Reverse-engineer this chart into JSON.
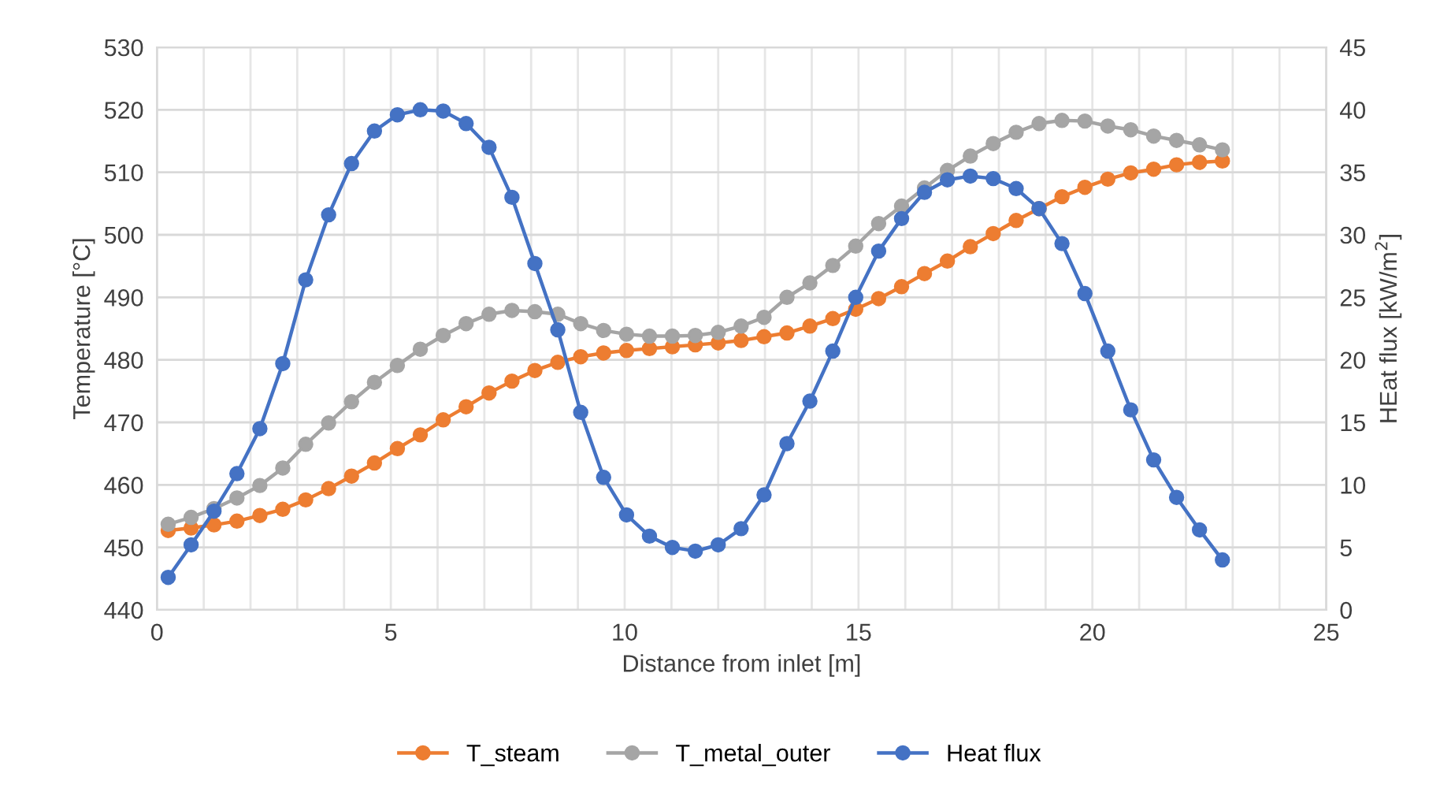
{
  "chart_data": {
    "type": "line",
    "xlabel": "Distance from inlet [m]",
    "ylabel": "Temperature [°C]",
    "y2label": "HEat flux [kW/m$^{2}$]",
    "x": [
      0.24,
      0.73,
      1.22,
      1.71,
      2.2,
      2.69,
      3.18,
      3.67,
      4.16,
      4.65,
      5.14,
      5.63,
      6.12,
      6.61,
      7.1,
      7.59,
      8.08,
      8.57,
      9.06,
      9.55,
      10.04,
      10.53,
      11.02,
      11.51,
      12.0,
      12.49,
      12.98,
      13.47,
      13.96,
      14.45,
      14.94,
      15.43,
      15.92,
      16.41,
      16.9,
      17.39,
      17.88,
      18.37,
      18.86,
      19.35,
      19.84,
      20.33,
      20.82,
      21.31,
      21.8,
      22.29,
      22.78
    ],
    "xlim": [
      0,
      25
    ],
    "xticks": [
      0,
      {
        "value": 1,
        "label": null
      },
      {
        "value": 2,
        "label": null
      },
      {
        "value": 3,
        "label": null
      },
      {
        "value": 4,
        "label": null
      },
      5,
      {
        "value": 6,
        "label": null
      },
      {
        "value": 7,
        "label": null
      },
      {
        "value": 8,
        "label": null
      },
      {
        "value": 9,
        "label": null
      },
      10,
      {
        "value": 11,
        "label": null
      },
      {
        "value": 12,
        "label": null
      },
      {
        "value": 13,
        "label": null
      },
      {
        "value": 14,
        "label": null
      },
      15,
      {
        "value": 16,
        "label": null
      },
      {
        "value": 17,
        "label": null
      },
      {
        "value": 18,
        "label": null
      },
      {
        "value": 19,
        "label": null
      },
      20,
      {
        "value": 21,
        "label": null
      },
      {
        "value": 22,
        "label": null
      },
      {
        "value": 23,
        "label": null
      },
      {
        "value": 24,
        "label": null
      },
      25
    ],
    "ylim": [
      440,
      530
    ],
    "yticks": [
      440,
      450,
      460,
      470,
      480,
      490,
      500,
      510,
      520,
      530
    ],
    "y2lim": [
      0,
      45
    ],
    "y2ticks": [
      0,
      5,
      10,
      15,
      20,
      25,
      30,
      35,
      40,
      45
    ],
    "grid": true,
    "legend": "bottom",
    "marker": "circle",
    "line_style": "solid",
    "series": [
      {
        "name": "T_steam",
        "color": "#ed7d31",
        "values": [
          452.7,
          453.1,
          453.6,
          454.2,
          455.1,
          456.1,
          457.6,
          459.4,
          461.4,
          463.5,
          465.8,
          468.0,
          470.4,
          472.5,
          474.7,
          476.6,
          478.3,
          479.6,
          480.5,
          481.1,
          481.5,
          481.8,
          482.1,
          482.4,
          482.7,
          483.1,
          483.7,
          484.3,
          485.4,
          486.6,
          488.1,
          489.8,
          491.7,
          493.8,
          495.8,
          498.1,
          500.2,
          502.3,
          504.2,
          506.1,
          507.6,
          508.9,
          509.9,
          510.5,
          511.2,
          511.6,
          511.8
        ]
      },
      {
        "name": "T_metal_outer",
        "color": "#a5a5a5",
        "values": [
          453.7,
          454.8,
          456.2,
          457.9,
          459.9,
          462.7,
          466.5,
          469.9,
          473.3,
          476.4,
          479.1,
          481.7,
          483.9,
          485.8,
          487.3,
          487.9,
          487.7,
          487.3,
          485.8,
          484.7,
          484.1,
          483.8,
          483.8,
          483.9,
          484.4,
          485.4,
          486.8,
          490.0,
          492.3,
          495.1,
          498.2,
          501.8,
          504.6,
          507.5,
          510.3,
          512.6,
          514.6,
          516.4,
          517.8,
          518.3,
          518.2,
          517.4,
          516.8,
          515.8,
          515.1,
          514.4,
          513.6
        ]
      },
      {
        "name": "Heat flux",
        "color": "#4472c4",
        "axis": "y2",
        "values": [
          2.6,
          5.2,
          7.9,
          10.9,
          14.5,
          19.7,
          26.4,
          31.6,
          35.7,
          38.3,
          39.6,
          40.0,
          39.9,
          38.9,
          37.0,
          33.0,
          27.7,
          22.4,
          15.8,
          10.6,
          7.6,
          5.9,
          5.0,
          4.7,
          5.2,
          6.5,
          9.2,
          13.3,
          16.7,
          20.7,
          25.0,
          28.7,
          31.3,
          33.4,
          34.4,
          34.7,
          34.5,
          33.7,
          32.1,
          29.3,
          25.3,
          20.7,
          16.0,
          12.0,
          9.0,
          6.4,
          4.0
        ]
      }
    ]
  }
}
